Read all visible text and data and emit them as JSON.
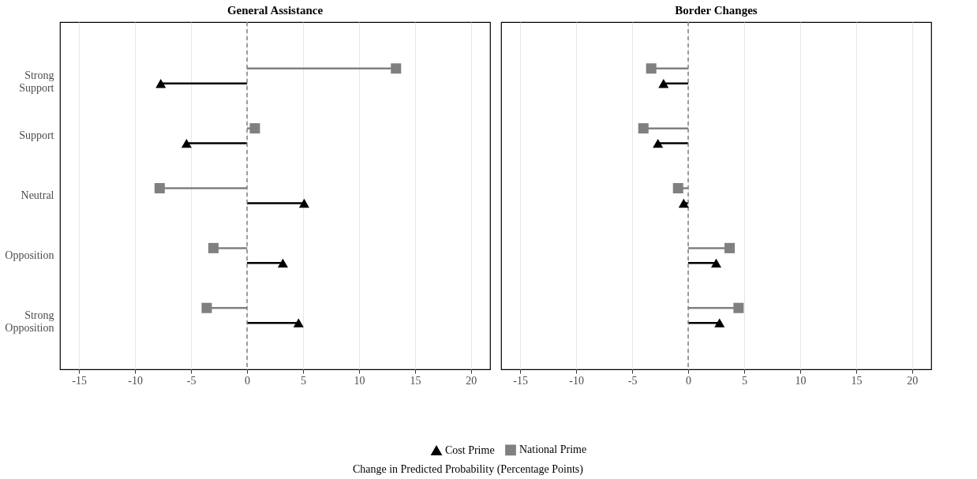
{
  "chart_data": [
    {
      "type": "lollipop",
      "title": "General Assistance",
      "xlabel": "Change in Predicted Probability (Percentage Points)",
      "orientation": "horizontal",
      "categories": [
        "Strong Support",
        "Support",
        "Neutral",
        "Opposition",
        "Strong Opposition"
      ],
      "series": [
        {
          "name": "Cost Prime",
          "color": "#000000",
          "marker": "triangle",
          "values": [
            -7.7,
            -5.4,
            5.1,
            3.2,
            4.6
          ]
        },
        {
          "name": "National Prime",
          "color": "#808080",
          "marker": "square",
          "values": [
            13.3,
            0.7,
            -7.8,
            -3.0,
            -3.6
          ]
        }
      ],
      "xlim": [
        -16.7,
        21.7
      ],
      "xticks": [
        -15,
        -10,
        -5,
        0,
        5,
        10,
        15,
        20
      ],
      "grid": "x",
      "legend": "bottom",
      "ref_lines": [
        {
          "axis": "x",
          "value": 0,
          "color": "#808080",
          "line_style": "dashed"
        }
      ]
    },
    {
      "type": "lollipop",
      "title": "Border Changes",
      "orientation": "horizontal",
      "categories": [
        "Strong Support",
        "Support",
        "Neutral",
        "Opposition",
        "Strong Opposition"
      ],
      "series": [
        {
          "name": "Cost Prime",
          "color": "#000000",
          "marker": "triangle",
          "values": [
            -2.2,
            -2.7,
            -0.4,
            2.5,
            2.8
          ]
        },
        {
          "name": "National Prime",
          "color": "#808080",
          "marker": "square",
          "values": [
            -3.3,
            -4.0,
            -0.9,
            3.7,
            4.5
          ]
        }
      ],
      "xlim": [
        -16.7,
        21.7
      ],
      "xticks": [
        -15,
        -10,
        -5,
        0,
        5,
        10,
        15,
        20
      ],
      "grid": "x",
      "legend": "bottom",
      "tick_labels": "x",
      "ref_lines": [
        {
          "axis": "x",
          "value": 0,
          "color": "#808080",
          "line_style": "dashed"
        }
      ]
    }
  ]
}
